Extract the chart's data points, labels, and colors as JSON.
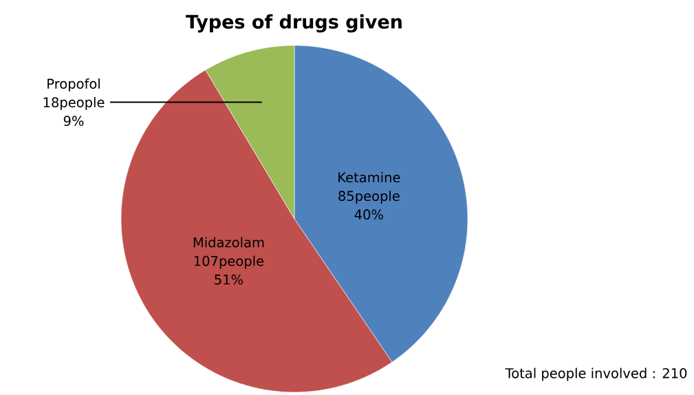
{
  "chart_data": {
    "type": "pie",
    "title": "Types of drugs given",
    "categories": [
      "Ketamine",
      "Midazolam",
      "Propofol"
    ],
    "values": [
      85,
      107,
      18
    ],
    "colors": [
      "#4f81bd",
      "#c0504d",
      "#9bbb59"
    ],
    "value_labels": [
      "85people",
      "107people",
      "18people"
    ],
    "annotations": [
      {
        "text": "40%",
        "x": "Ketamine"
      },
      {
        "text": "51%",
        "x": "Midazolam"
      },
      {
        "text": "9%",
        "x": "Propofol"
      },
      "Total people involved : 210"
    ]
  }
}
